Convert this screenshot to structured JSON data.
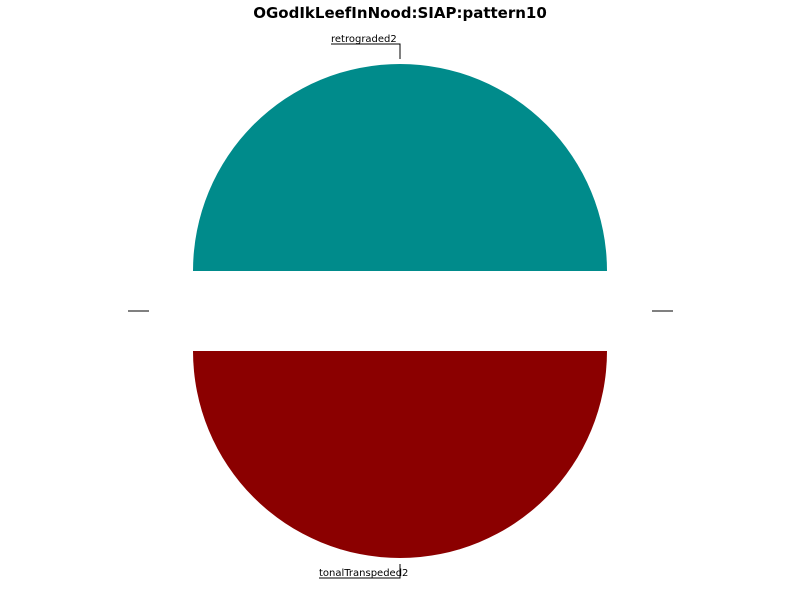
{
  "chart_data": {
    "type": "pie",
    "title": "OGodIkLeefInNood:SIAP:pattern10",
    "slices": [
      {
        "label": "retrograded2",
        "value": 1,
        "color": "#008b8b",
        "exploded": true
      },
      {
        "label": "",
        "value": 0,
        "color": "#ffffff",
        "exploded": false
      },
      {
        "label": "tonalTranspeded2",
        "value": 1,
        "color": "#8b0000",
        "exploded": true
      },
      {
        "label": "",
        "value": 0,
        "color": "#ffffff",
        "exploded": false
      }
    ]
  }
}
